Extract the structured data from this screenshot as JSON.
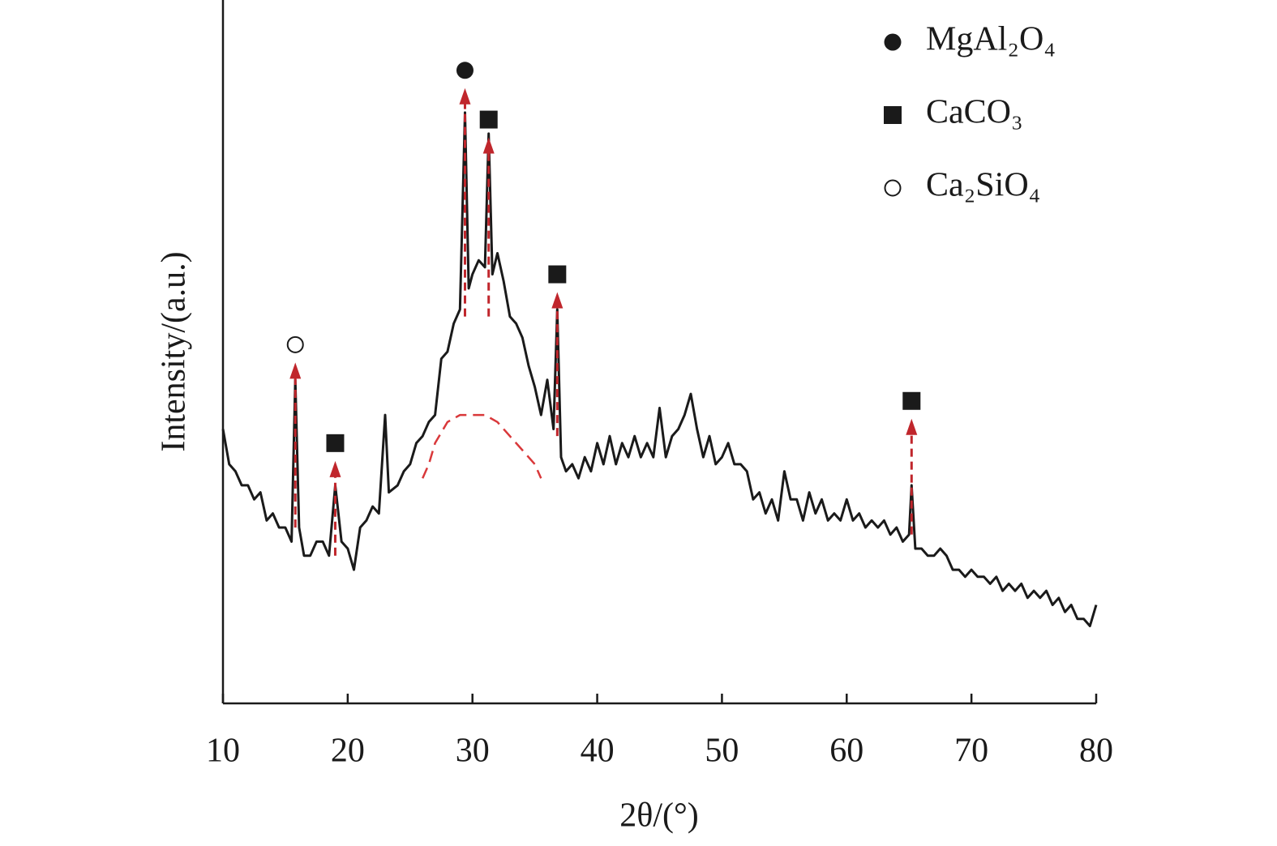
{
  "chart_data": {
    "type": "line",
    "xlabel": "2θ/(°)",
    "ylabel": "Intensity/(a.u.)",
    "xlim": [
      10,
      80
    ],
    "xticks": [
      10,
      20,
      30,
      40,
      50,
      60,
      70,
      80
    ],
    "ylim": [
      0,
      100
    ],
    "color": "#1a1a1a",
    "x": [
      10,
      10.5,
      11,
      11.5,
      12,
      12.5,
      13,
      13.5,
      14,
      14.5,
      15,
      15.5,
      15.8,
      16.1,
      16.5,
      17,
      17.5,
      18,
      18.5,
      19,
      19.5,
      20,
      20.5,
      21,
      21.5,
      22,
      22.5,
      23,
      23.3,
      24,
      24.5,
      25,
      25.5,
      26,
      26.5,
      27,
      27.5,
      28,
      28.5,
      29,
      29.4,
      29.7,
      30,
      30.5,
      31,
      31.3,
      31.6,
      32,
      32.5,
      33,
      33.5,
      34,
      34.5,
      35,
      35.5,
      36,
      36.5,
      36.8,
      37.1,
      37.5,
      38,
      38.5,
      39,
      39.5,
      40,
      40.5,
      41,
      41.5,
      42,
      42.5,
      43,
      43.5,
      44,
      44.5,
      45,
      45.5,
      46,
      46.5,
      47,
      47.5,
      48,
      48.5,
      49,
      49.5,
      50,
      50.5,
      51,
      51.5,
      52,
      52.5,
      53,
      53.5,
      54,
      54.5,
      55,
      55.5,
      56,
      56.5,
      57,
      57.5,
      58,
      58.5,
      59,
      59.5,
      60,
      60.5,
      61,
      61.5,
      62,
      62.5,
      63,
      63.5,
      64,
      64.5,
      65,
      65.2,
      65.5,
      66,
      66.5,
      67,
      67.5,
      68,
      68.5,
      69,
      69.5,
      70,
      70.5,
      71,
      71.5,
      72,
      72.5,
      73,
      73.5,
      74,
      74.5,
      75,
      75.5,
      76,
      76.5,
      77,
      77.5,
      78,
      78.5,
      79,
      79.5,
      80
    ],
    "values": [
      39,
      34,
      33,
      31,
      31,
      29,
      30,
      26,
      27,
      25,
      25,
      23,
      46,
      25,
      21,
      21,
      23,
      23,
      21,
      31,
      23,
      22,
      19,
      25,
      26,
      28,
      27,
      41,
      30,
      31,
      33,
      34,
      37,
      38,
      40,
      41,
      49,
      50,
      54,
      56,
      84,
      59,
      61,
      63,
      62,
      81,
      61,
      64,
      60,
      55,
      54,
      52,
      48,
      45,
      41,
      46,
      39,
      56,
      35,
      33,
      34,
      32,
      35,
      33,
      37,
      34,
      38,
      34,
      37,
      35,
      38,
      35,
      37,
      35,
      42,
      35,
      38,
      39,
      41,
      44,
      39,
      35,
      38,
      34,
      35,
      37,
      34,
      34,
      33,
      29,
      30,
      27,
      29,
      26,
      33,
      29,
      29,
      26,
      30,
      27,
      29,
      26,
      27,
      26,
      29,
      26,
      27,
      25,
      26,
      25,
      26,
      24,
      25,
      23,
      24,
      31,
      22,
      22,
      21,
      21,
      22,
      21,
      19,
      19,
      18,
      19,
      18,
      18,
      17,
      18,
      16,
      17,
      16,
      17,
      15,
      16,
      15,
      16,
      14,
      15,
      13,
      14,
      12,
      12,
      11,
      14
    ],
    "hump": {
      "color": "#d9383a",
      "x": [
        26,
        26.5,
        27,
        28,
        29,
        30,
        31,
        32,
        33,
        34,
        35,
        35.5
      ],
      "values": [
        32,
        34,
        37,
        40,
        41,
        41,
        41,
        40,
        38,
        36,
        34,
        32
      ]
    },
    "phases": [
      {
        "name": "MgAl₂O₄",
        "marker": "circle-filled"
      },
      {
        "name": "CaCO₃",
        "marker": "square"
      },
      {
        "name": "Ca₂SiO₄",
        "marker": "circle-open"
      }
    ],
    "arrow_color": "#c0262c",
    "peaks": [
      {
        "x": 15.8,
        "phase": 2,
        "marker_y": 51,
        "arrow_from": 25
      },
      {
        "x": 19,
        "phase": 1,
        "marker_y": 37,
        "arrow_from": 21
      },
      {
        "x": 29.4,
        "phase": 0,
        "marker_y": 90,
        "arrow_from": 55
      },
      {
        "x": 31.3,
        "phase": 1,
        "marker_y": 83,
        "arrow_from": 55
      },
      {
        "x": 36.8,
        "phase": 1,
        "marker_y": 61,
        "arrow_from": 38
      },
      {
        "x": 65.2,
        "phase": 1,
        "marker_y": 43,
        "arrow_from": 24
      }
    ]
  }
}
